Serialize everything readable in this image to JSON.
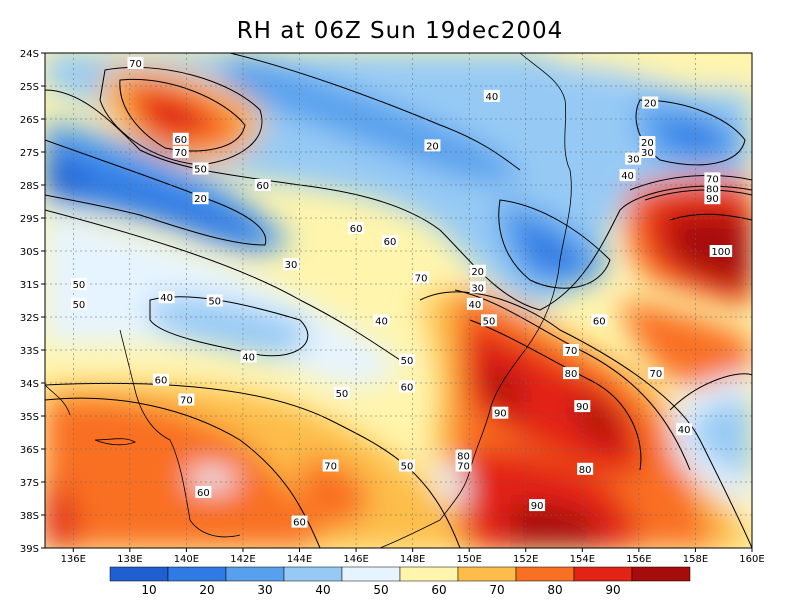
{
  "title": "RH at 06Z Sun 19dec2004",
  "map": {
    "lon_range": [
      135,
      160
    ],
    "lat_range": [
      -39,
      -24
    ],
    "lon_ticks": [
      "136E",
      "138E",
      "140E",
      "142E",
      "144E",
      "146E",
      "148E",
      "150E",
      "152E",
      "154E",
      "156E",
      "158E",
      "160E"
    ],
    "lat_ticks": [
      "24S",
      "25S",
      "26S",
      "27S",
      "28S",
      "29S",
      "30S",
      "31S",
      "32S",
      "33S",
      "34S",
      "35S",
      "36S",
      "37S",
      "38S",
      "39S"
    ],
    "grid": true,
    "contour_interval": 10
  },
  "contour_labels": [
    {
      "text": "70",
      "lon": 138.2,
      "lat": -24.3
    },
    {
      "text": "60",
      "lon": 139.8,
      "lat": -26.6
    },
    {
      "text": "70",
      "lon": 139.8,
      "lat": -27.0
    },
    {
      "text": "50",
      "lon": 140.5,
      "lat": -27.5
    },
    {
      "text": "60",
      "lon": 142.7,
      "lat": -28.0
    },
    {
      "text": "20",
      "lon": 140.5,
      "lat": -28.4
    },
    {
      "text": "60",
      "lon": 146.0,
      "lat": -29.3
    },
    {
      "text": "60",
      "lon": 147.2,
      "lat": -29.7
    },
    {
      "text": "30",
      "lon": 143.7,
      "lat": -30.4
    },
    {
      "text": "70",
      "lon": 148.3,
      "lat": -30.8
    },
    {
      "text": "20",
      "lon": 150.3,
      "lat": -30.6
    },
    {
      "text": "50",
      "lon": 136.2,
      "lat": -31.0
    },
    {
      "text": "30",
      "lon": 150.3,
      "lat": -31.1
    },
    {
      "text": "40",
      "lon": 139.3,
      "lat": -31.4
    },
    {
      "text": "50",
      "lon": 141.0,
      "lat": -31.5
    },
    {
      "text": "50",
      "lon": 136.2,
      "lat": -31.6
    },
    {
      "text": "40",
      "lon": 150.2,
      "lat": -31.6
    },
    {
      "text": "40",
      "lon": 146.9,
      "lat": -32.1
    },
    {
      "text": "50",
      "lon": 150.7,
      "lat": -32.1
    },
    {
      "text": "60",
      "lon": 154.6,
      "lat": -32.1
    },
    {
      "text": "70",
      "lon": 153.6,
      "lat": -33.0
    },
    {
      "text": "40",
      "lon": 142.2,
      "lat": -33.2
    },
    {
      "text": "50",
      "lon": 147.8,
      "lat": -33.3
    },
    {
      "text": "60",
      "lon": 139.1,
      "lat": -33.9
    },
    {
      "text": "80",
      "lon": 153.6,
      "lat": -33.7
    },
    {
      "text": "70",
      "lon": 156.6,
      "lat": -33.7
    },
    {
      "text": "60",
      "lon": 147.8,
      "lat": -34.1
    },
    {
      "text": "50",
      "lon": 145.5,
      "lat": -34.3
    },
    {
      "text": "70",
      "lon": 140.0,
      "lat": -34.5
    },
    {
      "text": "90",
      "lon": 154.0,
      "lat": -34.7
    },
    {
      "text": "90",
      "lon": 151.1,
      "lat": -34.9
    },
    {
      "text": "40",
      "lon": 157.6,
      "lat": -35.4
    },
    {
      "text": "80",
      "lon": 149.8,
      "lat": -36.2
    },
    {
      "text": "70",
      "lon": 149.8,
      "lat": -36.5
    },
    {
      "text": "50",
      "lon": 147.8,
      "lat": -36.5
    },
    {
      "text": "70",
      "lon": 145.1,
      "lat": -36.5
    },
    {
      "text": "80",
      "lon": 154.1,
      "lat": -36.6
    },
    {
      "text": "60",
      "lon": 140.6,
      "lat": -37.3
    },
    {
      "text": "90",
      "lon": 152.4,
      "lat": -37.7
    },
    {
      "text": "60",
      "lon": 144.0,
      "lat": -38.2
    },
    {
      "text": "30",
      "lon": 156.3,
      "lat": -27.0
    },
    {
      "text": "20",
      "lon": 156.4,
      "lat": -25.5
    },
    {
      "text": "20",
      "lon": 156.3,
      "lat": -26.7
    },
    {
      "text": "40",
      "lon": 150.8,
      "lat": -25.3
    },
    {
      "text": "20",
      "lon": 148.7,
      "lat": -26.8
    },
    {
      "text": "30",
      "lon": 155.8,
      "lat": -27.2
    },
    {
      "text": "40",
      "lon": 155.6,
      "lat": -27.7
    },
    {
      "text": "70",
      "lon": 158.6,
      "lat": -27.8
    },
    {
      "text": "80",
      "lon": 158.6,
      "lat": -28.1
    },
    {
      "text": "90",
      "lon": 158.6,
      "lat": -28.4
    },
    {
      "text": "100",
      "lon": 158.9,
      "lat": -30.0
    }
  ],
  "legend": {
    "labels": [
      "10",
      "20",
      "30",
      "40",
      "50",
      "60",
      "70",
      "80",
      "90"
    ],
    "colors": [
      "#1f5fd2",
      "#2f7ae5",
      "#56a0ee",
      "#96caf5",
      "#e6f4ff",
      "#fff5ad",
      "#fdbd48",
      "#f97022",
      "#e32315",
      "#a60c0c"
    ]
  }
}
